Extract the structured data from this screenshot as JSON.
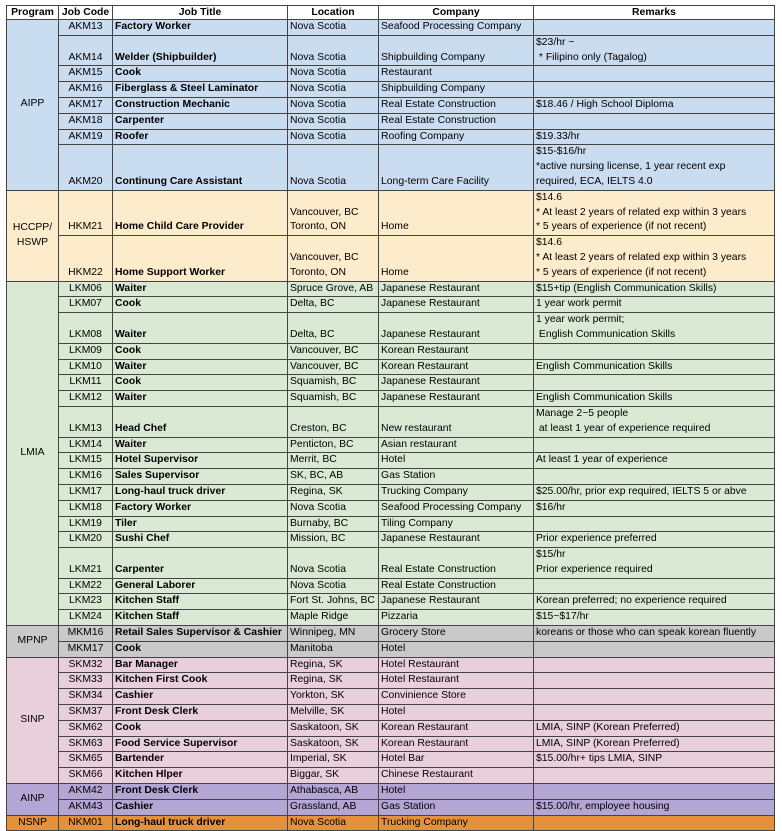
{
  "headers": [
    "Program",
    "Job Code",
    "Job Title",
    "Location",
    "Company",
    "Remarks"
  ],
  "groups": [
    {
      "program": "AIPP",
      "color": "#cadcf0",
      "rows": [
        {
          "code": "AKM13",
          "title": "Factory Worker",
          "location": "Nova Scotia",
          "company": "Seafood Processing Company",
          "remarks": ""
        },
        {
          "code": "AKM14",
          "title": "Welder (Shipbuilder)",
          "location": "Nova Scotia",
          "company": "Shipbuilding Company",
          "remarks": "$23/hr ~\n * Filipino only (Tagalog)"
        },
        {
          "code": "AKM15",
          "title": "Cook",
          "location": "Nova Scotia",
          "company": "Restaurant",
          "remarks": ""
        },
        {
          "code": "AKM16",
          "title": "Fiberglass & Steel Laminator",
          "location": "Nova Scotia",
          "company": "Shipbuilding Company",
          "remarks": ""
        },
        {
          "code": "AKM17",
          "title": "Construction Mechanic",
          "location": "Nova Scotia",
          "company": "Real Estate Construction",
          "remarks": "$18.46 / High School Diploma"
        },
        {
          "code": "AKM18",
          "title": "Carpenter",
          "location": "Nova Scotia",
          "company": "Real Estate Construction",
          "remarks": ""
        },
        {
          "code": "AKM19",
          "title": "Roofer",
          "location": "Nova Scotia",
          "company": "Roofing Company",
          "remarks": "$19.33/hr"
        },
        {
          "code": "AKM20",
          "title": "Continung Care Assistant",
          "location": "Nova Scotia",
          "company": "Long-term Care Facility",
          "remarks": "$15-$16/hr\n*active nursing license, 1 year recent exp\nrequired, ECA, IELTS 4.0"
        }
      ]
    },
    {
      "program": "HCCPP/\nHSWP",
      "color": "#fdeccb",
      "rows": [
        {
          "code": "HKM21",
          "title": "Home Child Care Provider",
          "location": "Vancouver, BC\nToronto, ON",
          "company": "Home",
          "remarks": "$14.6\n* At least 2 years of related exp within 3 years\n* 5 years of experience (if not recent)"
        },
        {
          "code": "HKM22",
          "title": "Home Support Worker",
          "location": "Vancouver, BC\nToronto, ON",
          "company": "Home",
          "remarks": "$14.6\n* At least 2 years of related exp within 3 years\n* 5 years of experience (if not recent)"
        }
      ]
    },
    {
      "program": "LMIA",
      "color": "#d9e9d3",
      "rows": [
        {
          "code": "LKM06",
          "title": "Waiter",
          "location": "Spruce Grove, AB",
          "company": "Japanese Restaurant",
          "remarks": "$15+tip (English Communication Skills)"
        },
        {
          "code": "LKM07",
          "title": "Cook",
          "location": "Delta, BC",
          "company": "Japanese Restaurant",
          "remarks": "1 year work permit"
        },
        {
          "code": "LKM08",
          "title": "Waiter",
          "location": "Delta, BC",
          "company": "Japanese Restaurant",
          "remarks": "1 year work permit;\n English Communication Skills"
        },
        {
          "code": "LKM09",
          "title": "Cook",
          "location": "Vancouver, BC",
          "company": "Korean Restaurant",
          "remarks": ""
        },
        {
          "code": "LKM10",
          "title": "Waiter",
          "location": "Vancouver, BC",
          "company": "Korean Restaurant",
          "remarks": "English Communication Skills"
        },
        {
          "code": "LKM11",
          "title": "Cook",
          "location": "Squamish, BC",
          "company": "Japanese Restaurant",
          "remarks": ""
        },
        {
          "code": "LKM12",
          "title": "Waiter",
          "location": "Squamish, BC",
          "company": "Japanese Restaurant",
          "remarks": "English Communication Skills"
        },
        {
          "code": "LKM13",
          "title": "Head Chef",
          "location": "Creston, BC",
          "company": "New restaurant",
          "remarks": "Manage 2~5 people\n at least 1 year of experience required"
        },
        {
          "code": "LKM14",
          "title": "Waiter",
          "location": "Penticton, BC",
          "company": "Asian restaurant",
          "remarks": ""
        },
        {
          "code": "LKM15",
          "title": "Hotel Supervisor",
          "location": "Merrit, BC",
          "company": "Hotel",
          "remarks": "At least 1 year of experience"
        },
        {
          "code": "LKM16",
          "title": "Sales Supervisor",
          "location": "SK, BC, AB",
          "company": "Gas Station",
          "remarks": ""
        },
        {
          "code": "LKM17",
          "title": "Long-haul truck driver",
          "location": "Regina, SK",
          "company": "Trucking Company",
          "remarks": "$25.00/hr, prior exp required, IELTS 5 or abve"
        },
        {
          "code": "LKM18",
          "title": "Factory Worker",
          "location": "Nova Scotia",
          "company": "Seafood Processing Company",
          "remarks": "$16/hr"
        },
        {
          "code": "LKM19",
          "title": "Tiler",
          "location": "Burnaby, BC",
          "company": "Tiling Company",
          "remarks": ""
        },
        {
          "code": "LKM20",
          "title": "Sushi Chef",
          "location": "Mission, BC",
          "company": "Japanese Restaurant",
          "remarks": "Prior experience preferred"
        },
        {
          "code": "LKM21",
          "title": "Carpenter",
          "location": "Nova Scotia",
          "company": "Real Estate Construction",
          "remarks": "$15/hr\nPrior experience required"
        },
        {
          "code": "LKM22",
          "title": "General Laborer",
          "location": "Nova Scotia",
          "company": "Real Estate Construction",
          "remarks": ""
        },
        {
          "code": "LKM23",
          "title": "Kitchen Staff",
          "location": "Fort St. Johns, BC",
          "company": "Japanese Restaurant",
          "remarks": "Korean preferred; no experience required"
        },
        {
          "code": "LKM24",
          "title": "Kitchen Staff",
          "location": "Maple Ridge",
          "company": "Pizzaria",
          "remarks": "$15~$17/hr"
        }
      ]
    },
    {
      "program": "MPNP",
      "color": "#c9c9c9",
      "rows": [
        {
          "code": "MKM16",
          "title": "Retail Sales Supervisor & Cashier",
          "location": "Winnipeg, MN",
          "company": "Grocery Store",
          "remarks": "koreans or those who can speak korean fluently"
        },
        {
          "code": "MKM17",
          "title": "Cook",
          "location": "Manitoba",
          "company": "Hotel",
          "remarks": ""
        }
      ]
    },
    {
      "program": "SINP",
      "color": "#e9cfdb",
      "rows": [
        {
          "code": "SKM32",
          "title": "Bar Manager",
          "location": "Regina, SK",
          "company": "Hotel Restaurant",
          "remarks": ""
        },
        {
          "code": "SKM33",
          "title": "Kitchen First Cook",
          "location": "Regina, SK",
          "company": "Hotel Restaurant",
          "remarks": ""
        },
        {
          "code": "SKM34",
          "title": "Cashier",
          "location": "Yorkton, SK",
          "company": "Convinience Store",
          "remarks": ""
        },
        {
          "code": "SKM37",
          "title": "Front Desk Clerk",
          "location": "Melville, SK",
          "company": "Hotel",
          "remarks": ""
        },
        {
          "code": "SKM62",
          "title": "Cook",
          "location": "Saskatoon, SK",
          "company": "Korean Restaurant",
          "remarks": "LMIA, SINP (Korean Preferred)"
        },
        {
          "code": "SKM63",
          "title": "Food Service Supervisor",
          "location": "Saskatoon, SK",
          "company": "Korean Restaurant",
          "remarks": "LMIA, SINP (Korean Preferred)"
        },
        {
          "code": "SKM65",
          "title": "Bartender",
          "location": "Imperial, SK",
          "company": "Hotel Bar",
          "remarks": "$15.00/hr+ tips LMIA, SINP"
        },
        {
          "code": "SKM66",
          "title": "Kitchen Hlper",
          "location": "Biggar, SK",
          "company": "Chinese Restaurant",
          "remarks": ""
        }
      ]
    },
    {
      "program": "AINP",
      "color": "#b3a6d5",
      "rows": [
        {
          "code": "AKM42",
          "title": "Front Desk Clerk",
          "location": "Athabasca, AB",
          "company": "Hotel",
          "remarks": ""
        },
        {
          "code": "AKM43",
          "title": "Cashier",
          "location": "Grassland, AB",
          "company": "Gas Station",
          "remarks": "$15.00/hr, employee housing"
        }
      ]
    },
    {
      "program": "NSNP",
      "color": "#e5913a",
      "rows": [
        {
          "code": "NKM01",
          "title": "Long-haul truck driver",
          "location": "Nova Scotia",
          "company": "Trucking Company",
          "remarks": ""
        }
      ]
    }
  ]
}
